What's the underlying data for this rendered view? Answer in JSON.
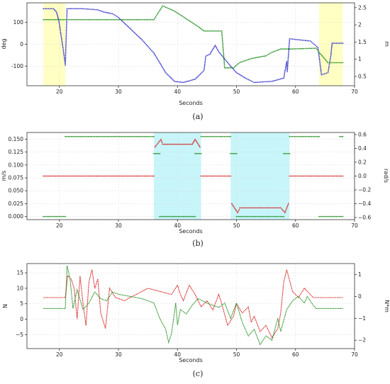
{
  "chart_data": [
    {
      "type": "scatter",
      "caption": "(a)",
      "xlabel": "Seconds",
      "ylabel_left": "deg",
      "ylabel_right": "m",
      "xlim": [
        14.5,
        70
      ],
      "ylim_left": [
        -190,
        190
      ],
      "ylim_right": [
        0.23,
        2.64
      ],
      "xticks": [
        20,
        30,
        40,
        50,
        60,
        70
      ],
      "yticks_left": [
        100,
        0,
        -100
      ],
      "yticks_right": [
        2.5,
        2.0,
        1.5,
        1.0,
        0.5
      ],
      "grid": true,
      "shaded_regions": [
        {
          "x0": 17.3,
          "x1": 21.0,
          "color": "#ffffc4"
        },
        {
          "x0": 64.0,
          "x1": 68.0,
          "color": "#ffffc4"
        }
      ],
      "series": [
        {
          "axis": "left",
          "color": "#3333cc",
          "points": [
            [
              17.3,
              163
            ],
            [
              19.0,
              163
            ],
            [
              19.5,
              148
            ],
            [
              19.9,
              110
            ],
            [
              20.2,
              55
            ],
            [
              20.6,
              -15
            ],
            [
              21.0,
              -95
            ],
            [
              21.3,
              163
            ],
            [
              24.0,
              163
            ],
            [
              26.5,
              158
            ],
            [
              27.5,
              148
            ],
            [
              29.0,
              140
            ],
            [
              30.0,
              123
            ],
            [
              34.0,
              20
            ],
            [
              36.0,
              -40
            ],
            [
              38.0,
              -130
            ],
            [
              39.5,
              -170
            ],
            [
              41.0,
              -175
            ],
            [
              43.0,
              -160
            ],
            [
              44.5,
              -120
            ],
            [
              44.8,
              -55
            ],
            [
              45.5,
              -45
            ],
            [
              46.4,
              -5
            ],
            [
              47.0,
              -35
            ],
            [
              49.0,
              -100
            ],
            [
              50.0,
              -130
            ],
            [
              51.5,
              -155
            ],
            [
              53.0,
              -175
            ],
            [
              56.0,
              -170
            ],
            [
              58.0,
              -155
            ],
            [
              58.5,
              -80
            ],
            [
              58.6,
              -125
            ],
            [
              59.0,
              25
            ],
            [
              62.5,
              15
            ],
            [
              63.8,
              -15
            ],
            [
              64.4,
              -140
            ],
            [
              65.5,
              -130
            ],
            [
              66.0,
              -50
            ],
            [
              66.2,
              5
            ],
            [
              68.0,
              5
            ]
          ]
        },
        {
          "axis": "right",
          "color": "#1f8f1f",
          "points": [
            [
              17.3,
              2.15
            ],
            [
              36.0,
              2.15
            ],
            [
              37.5,
              2.55
            ],
            [
              39.5,
              2.4
            ],
            [
              43.5,
              1.95
            ],
            [
              44.5,
              1.82
            ],
            [
              47.5,
              1.82
            ],
            [
              48.0,
              0.75
            ],
            [
              49.5,
              0.75
            ],
            [
              50.5,
              0.9
            ],
            [
              52.5,
              1.02
            ],
            [
              55.0,
              1.1
            ],
            [
              56.0,
              1.2
            ],
            [
              57.5,
              1.3
            ],
            [
              59.5,
              1.3
            ],
            [
              63.5,
              1.32
            ],
            [
              64.0,
              1.2
            ],
            [
              65.0,
              1.0
            ],
            [
              65.5,
              0.9
            ],
            [
              68.0,
              0.9
            ]
          ]
        }
      ]
    },
    {
      "type": "scatter",
      "caption": "(b)",
      "xlabel": "Seconds",
      "ylabel_left": "m/s",
      "ylabel_right": "rad/s",
      "xlim": [
        14.5,
        70
      ],
      "ylim_left": [
        -0.006,
        0.163
      ],
      "ylim_right": [
        -0.63,
        0.63
      ],
      "xticks": [
        20,
        30,
        40,
        50,
        60,
        70
      ],
      "yticks_left": [
        0.15,
        0.125,
        0.1,
        0.075,
        0.05,
        0.025,
        0.0
      ],
      "ytick_labels_left": [
        "0.150",
        "0.125",
        "0.100",
        "0.075",
        "0.050",
        "0.025",
        "0.000"
      ],
      "yticks_right": [
        0.6,
        0.4,
        0.2,
        0.0,
        -0.2,
        -0.4,
        -0.6
      ],
      "ytick_labels_right": [
        "0.6",
        "0.4",
        "0.2",
        "0.0",
        "−0.2",
        "−0.4",
        "−0.6"
      ],
      "grid": true,
      "shaded_regions": [
        {
          "x0": 36.0,
          "x1": 44.0,
          "color": "#c8f5f9"
        },
        {
          "x0": 49.0,
          "x1": 59.0,
          "color": "#c8f5f9"
        }
      ],
      "series": [
        {
          "axis": "left",
          "color": "#1f8f1f",
          "points": [
            [
              17.3,
              0.0
            ],
            [
              21.0,
              0.0
            ],
            null,
            [
              21.0,
              0.155
            ],
            [
              36.0,
              0.155
            ],
            null,
            [
              36.0,
              0.122
            ],
            [
              37.0,
              0.122
            ],
            null,
            [
              37.0,
              0.0
            ],
            [
              43.0,
              0.0
            ],
            null,
            [
              43.0,
              0.122
            ],
            [
              44.0,
              0.122
            ],
            null,
            [
              44.0,
              0.155
            ],
            [
              49.0,
              0.155
            ],
            null,
            [
              49.0,
              0.122
            ],
            [
              50.0,
              0.122
            ],
            null,
            [
              50.0,
              0.0
            ],
            [
              58.0,
              0.0
            ],
            null,
            [
              58.0,
              0.122
            ],
            [
              59.0,
              0.122
            ],
            null,
            [
              59.0,
              0.155
            ],
            [
              64.0,
              0.155
            ],
            null,
            [
              64.0,
              0.0
            ],
            [
              68.0,
              0.0
            ],
            null,
            [
              67.5,
              0.155
            ],
            [
              68.0,
              0.155
            ]
          ]
        },
        {
          "axis": "right",
          "color": "#d62020",
          "points": [
            [
              17.3,
              0.0
            ],
            [
              36.0,
              0.0
            ],
            null,
            [
              36.2,
              0.42
            ],
            [
              37.2,
              0.53
            ],
            [
              37.5,
              0.46
            ],
            [
              42.5,
              0.46
            ],
            [
              43.0,
              0.53
            ],
            [
              43.8,
              0.42
            ],
            null,
            [
              44.0,
              0.0
            ],
            [
              49.0,
              0.0
            ],
            null,
            [
              49.2,
              -0.4
            ],
            [
              50.2,
              -0.53
            ],
            [
              50.6,
              -0.46
            ],
            [
              57.5,
              -0.46
            ],
            [
              58.2,
              -0.53
            ],
            [
              58.8,
              -0.4
            ],
            null,
            [
              59.0,
              0.0
            ],
            [
              68.0,
              0.0
            ]
          ]
        }
      ]
    },
    {
      "type": "line",
      "caption": "(c)",
      "xlabel": "Seconds",
      "ylabel_left": "N",
      "ylabel_right": "N*m",
      "xlim": [
        14.5,
        70
      ],
      "ylim_left": [
        -9.5,
        18
      ],
      "ylim_right": [
        -2.38,
        1.5
      ],
      "xticks": [
        20,
        30,
        40,
        50,
        60,
        70
      ],
      "yticks_left": [
        15,
        10,
        5,
        0,
        -5
      ],
      "ytick_labels_left": [
        "15",
        "10",
        "5",
        "0",
        "−5"
      ],
      "yticks_right": [
        1,
        0,
        -1,
        -2
      ],
      "ytick_labels_right": [
        "1",
        "0",
        "−1",
        "−2"
      ],
      "grid": true,
      "series": [
        {
          "axis": "left",
          "color": "#d62020",
          "points": [
            [
              17.3,
              7
            ],
            [
              21.0,
              7
            ],
            [
              21.4,
              14
            ],
            [
              22.0,
              13
            ],
            [
              22.5,
              10
            ],
            [
              23.0,
              0
            ],
            [
              23.5,
              14
            ],
            [
              24.0,
              5
            ],
            [
              24.5,
              -2
            ],
            [
              25.0,
              12
            ],
            [
              25.5,
              16
            ],
            [
              26.0,
              10
            ],
            [
              26.5,
              13
            ],
            [
              27.0,
              2
            ],
            [
              27.8,
              -3
            ],
            [
              28.5,
              10
            ],
            [
              29.5,
              7
            ],
            [
              31.0,
              6
            ],
            [
              33.0,
              8
            ],
            [
              35.0,
              10
            ],
            [
              37.0,
              9
            ],
            [
              39.0,
              8
            ],
            [
              40.0,
              11
            ],
            [
              40.5,
              8
            ],
            [
              41.0,
              6
            ],
            [
              42.0,
              11
            ],
            [
              43.0,
              8
            ],
            [
              44.0,
              4
            ],
            [
              45.0,
              6
            ],
            [
              46.0,
              3
            ],
            [
              47.0,
              8
            ],
            [
              47.5,
              5
            ],
            [
              48.5,
              -2
            ],
            [
              49.5,
              1
            ],
            [
              50.0,
              5
            ],
            [
              51.0,
              2
            ],
            [
              52.0,
              4
            ],
            [
              52.5,
              -1
            ],
            [
              53.0,
              1
            ],
            [
              54.0,
              -4
            ],
            [
              55.0,
              -2
            ],
            [
              56.0,
              -6
            ],
            [
              57.0,
              -3
            ],
            [
              57.5,
              2
            ],
            [
              58.0,
              12
            ],
            [
              58.5,
              16
            ],
            [
              59.5,
              9
            ],
            [
              60.5,
              7
            ],
            [
              61.5,
              10
            ],
            [
              62.5,
              8
            ],
            [
              63.0,
              7
            ],
            [
              64.0,
              7
            ],
            [
              68.0,
              7
            ]
          ]
        },
        {
          "axis": "right",
          "color": "#1f8f1f",
          "points": [
            [
              17.3,
              -0.55
            ],
            [
              21.0,
              -0.55
            ],
            [
              21.3,
              1.4
            ],
            [
              21.8,
              0.8
            ],
            [
              22.3,
              -0.55
            ],
            [
              23.0,
              0.3
            ],
            [
              24.0,
              -0.6
            ],
            [
              25.0,
              -0.3
            ],
            [
              26.0,
              0.2
            ],
            [
              27.0,
              -0.1
            ],
            [
              28.0,
              -0.2
            ],
            [
              29.0,
              0.2
            ],
            [
              30.0,
              0.1
            ],
            [
              32.0,
              0.0
            ],
            [
              34.0,
              -0.1
            ],
            [
              36.0,
              -0.3
            ],
            [
              37.0,
              -1.0
            ],
            [
              38.0,
              -1.5
            ],
            [
              38.5,
              -2.1
            ],
            [
              39.0,
              -1.7
            ],
            [
              39.7,
              -0.3
            ],
            [
              40.0,
              -1.3
            ],
            [
              40.5,
              -0.6
            ],
            [
              41.5,
              -0.8
            ],
            [
              42.5,
              -0.4
            ],
            [
              43.5,
              -0.1
            ],
            [
              45.0,
              -0.3
            ],
            [
              47.0,
              -0.5
            ],
            [
              48.0,
              -0.3
            ],
            [
              49.0,
              -1.0
            ],
            [
              50.0,
              -0.3
            ],
            [
              51.0,
              -1.2
            ],
            [
              52.0,
              -1.8
            ],
            [
              53.0,
              -1.5
            ],
            [
              54.0,
              -2.2
            ],
            [
              55.0,
              -1.8
            ],
            [
              56.0,
              -2.0
            ],
            [
              57.0,
              -1.0
            ],
            [
              57.5,
              -1.6
            ],
            [
              58.5,
              -0.6
            ],
            [
              59.5,
              -0.2
            ],
            [
              60.5,
              0.0
            ],
            [
              61.5,
              -0.3
            ],
            [
              62.0,
              0.0
            ],
            [
              63.0,
              -0.4
            ],
            [
              63.5,
              -0.55
            ],
            [
              64.0,
              -0.55
            ],
            [
              68.0,
              -0.55
            ]
          ]
        }
      ]
    }
  ]
}
